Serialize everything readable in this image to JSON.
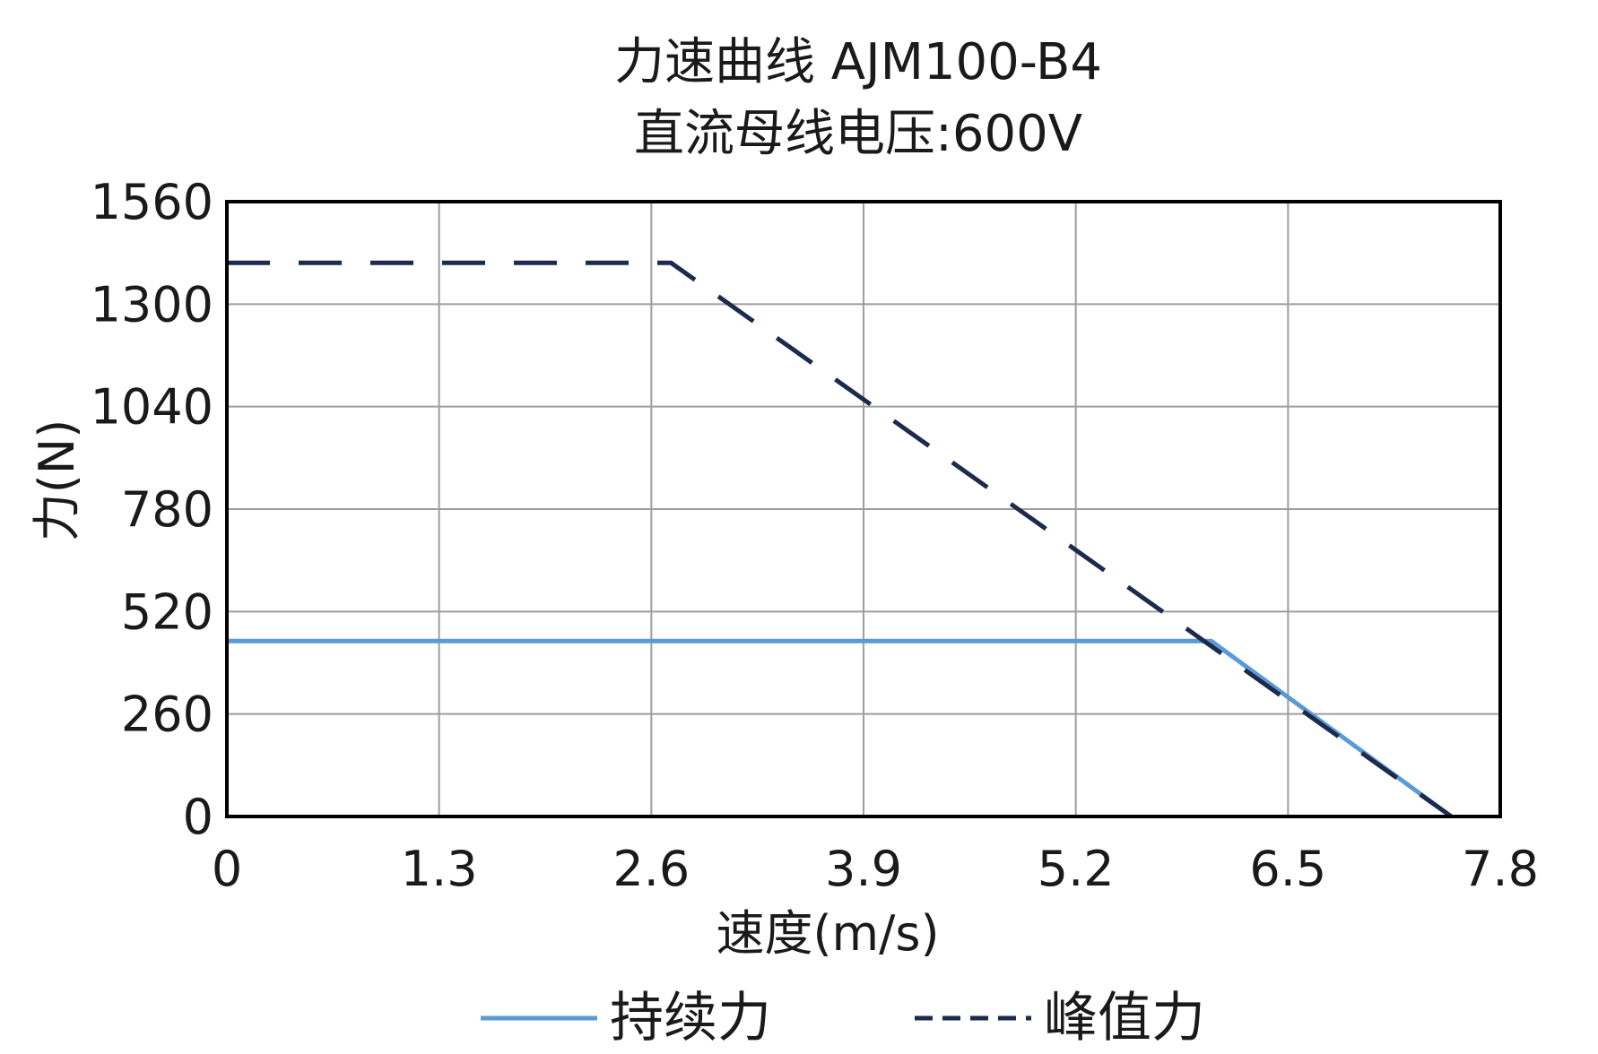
{
  "chart_data": {
    "type": "line",
    "title": "力速曲线 AJM100-B4",
    "subtitle": "直流母线电压:600V",
    "xlabel": "速度(m/s)",
    "ylabel": "力(N)",
    "xlim": [
      0,
      7.8
    ],
    "ylim": [
      0,
      1560
    ],
    "x_ticks": [
      "0",
      "1.3",
      "2.6",
      "3.9",
      "5.2",
      "6.5",
      "7.8"
    ],
    "y_ticks": [
      "0",
      "260",
      "520",
      "780",
      "1040",
      "1300",
      "1560"
    ],
    "grid": true,
    "legend_position": "bottom",
    "series": [
      {
        "name": "持续力",
        "color": "#5b9bd5",
        "style": "solid",
        "points": [
          [
            0,
            445
          ],
          [
            6.03,
            445
          ],
          [
            7.5,
            0
          ]
        ]
      },
      {
        "name": "峰值力",
        "color": "#1c2a4d",
        "style": "dashed",
        "points": [
          [
            0,
            1405
          ],
          [
            2.72,
            1405
          ],
          [
            7.5,
            0
          ]
        ]
      }
    ]
  }
}
